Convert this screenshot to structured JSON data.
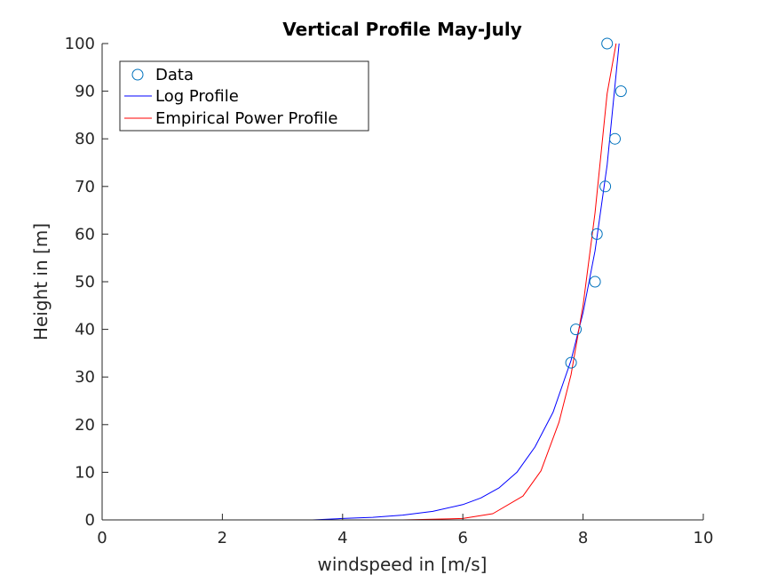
{
  "chart_data": {
    "type": "line",
    "title": "Vertical Profile May-July",
    "xlabel": "windspeed in [m/s]",
    "ylabel": "Height in [m]",
    "xlim": [
      0,
      10
    ],
    "ylim": [
      0,
      100
    ],
    "xticks": [
      "0",
      "2",
      "4",
      "6",
      "8",
      "10"
    ],
    "yticks": [
      "0",
      "10",
      "20",
      "30",
      "40",
      "50",
      "60",
      "70",
      "80",
      "90",
      "100"
    ],
    "grid": false,
    "legend_position": "top-left",
    "series": [
      {
        "name": "Data",
        "style": "markers",
        "marker": "circle",
        "color": "#0072BD",
        "x": [
          7.8,
          7.88,
          8.2,
          8.23,
          8.37,
          8.53,
          8.63,
          8.4
        ],
        "y": [
          33,
          40,
          50,
          60,
          70,
          80,
          90,
          100
        ]
      },
      {
        "name": "Log Profile",
        "style": "line",
        "color": "#0000FF",
        "x": [
          0,
          3.5,
          4.0,
          4.5,
          5.0,
          5.5,
          6.0,
          6.3,
          6.6,
          6.9,
          7.2,
          7.5,
          7.8,
          8.0,
          8.2,
          8.4,
          8.6
        ],
        "y": [
          0,
          0.0,
          0.3,
          0.55,
          1.0,
          1.8,
          3.2,
          4.6,
          6.7,
          10.0,
          15.3,
          22.6,
          33.5,
          43.5,
          56.5,
          74.5,
          100
        ]
      },
      {
        "name": "Empirical Power Profile",
        "style": "line",
        "color": "#FF0000",
        "x": [
          0,
          5.0,
          6.0,
          6.5,
          7.0,
          7.3,
          7.6,
          7.8,
          8.0,
          8.2,
          8.4,
          8.55
        ],
        "y": [
          0,
          0.0,
          0.3,
          1.3,
          5.0,
          10.3,
          20.5,
          30.5,
          45.0,
          64.5,
          89.5,
          100
        ]
      }
    ]
  }
}
